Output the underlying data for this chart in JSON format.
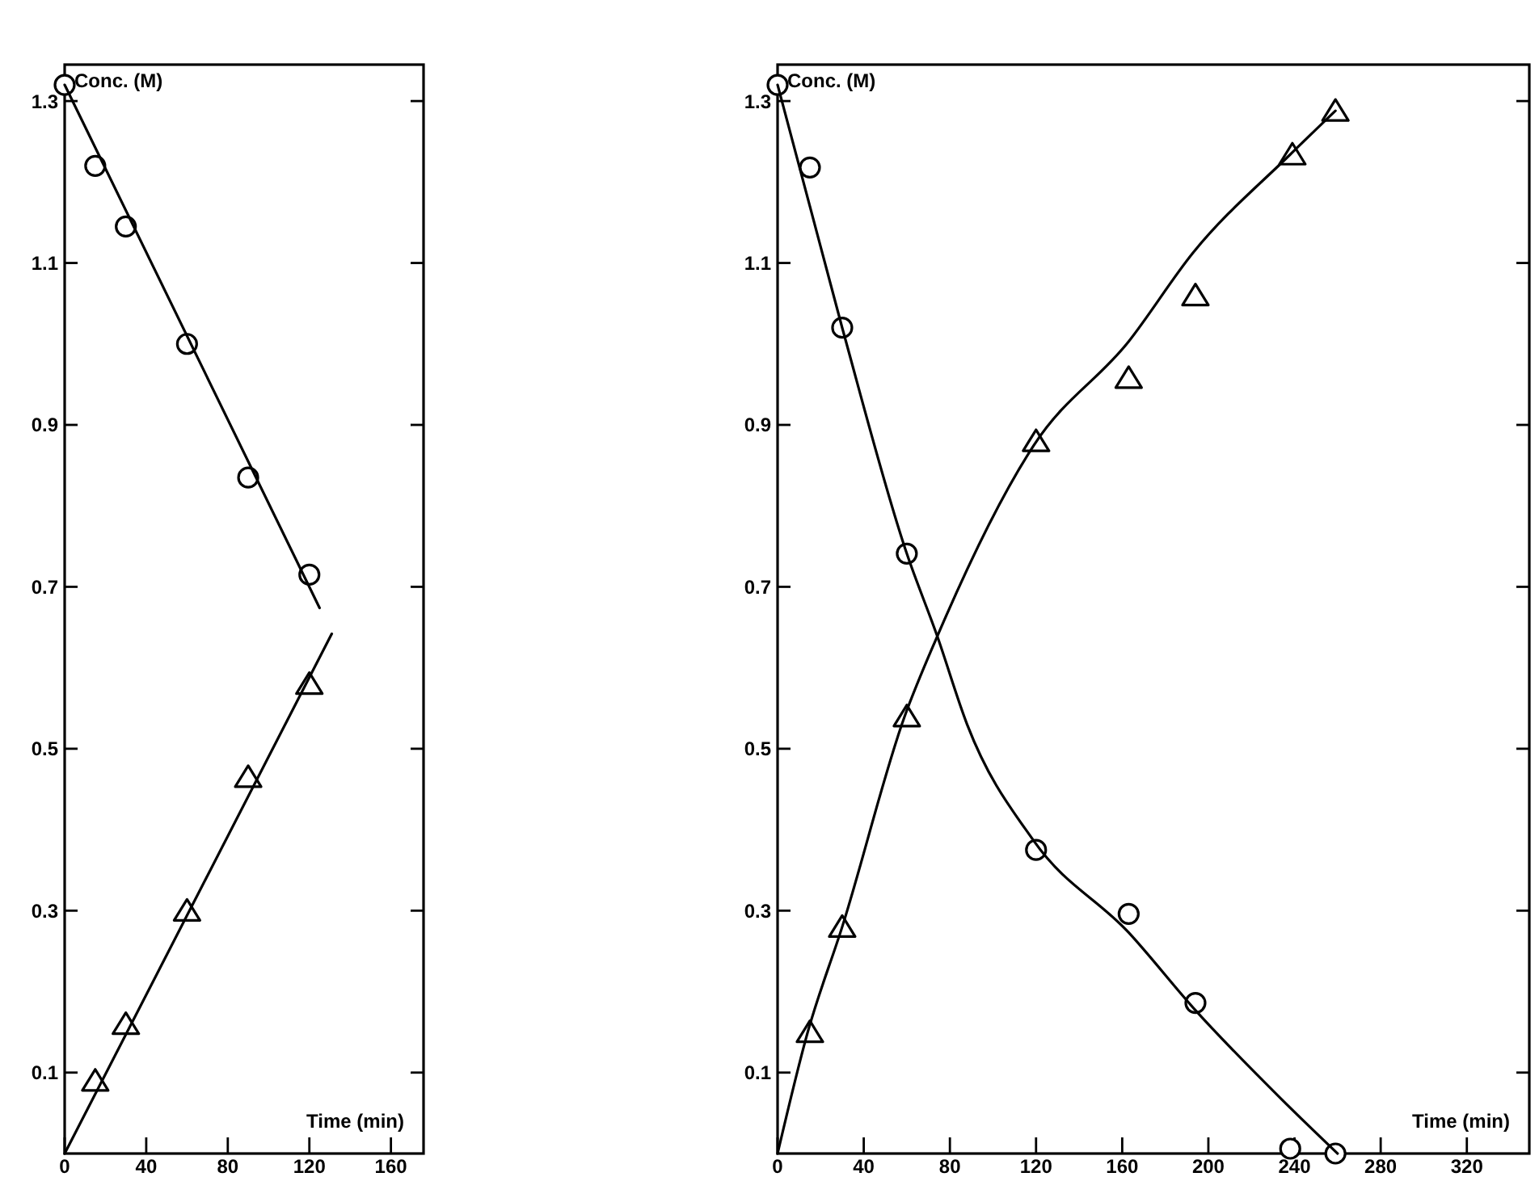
{
  "chart_data": [
    {
      "type": "scatter",
      "xlabel": "Time (min)",
      "ylabel": "Conc. (M)",
      "xlim": [
        0,
        176
      ],
      "ylim": [
        0,
        1.345
      ],
      "xticks": [
        0,
        40,
        80,
        120,
        160
      ],
      "yticks": [
        0.1,
        0.3,
        0.5,
        0.7,
        0.9,
        1.1,
        1.3
      ],
      "series": [
        {
          "marker": "circle",
          "color": "#000000",
          "x": [
            0,
            15,
            30,
            60,
            90,
            120
          ],
          "values": [
            1.32,
            1.22,
            1.145,
            1.0,
            0.835,
            0.715
          ]
        },
        {
          "marker": "triangle",
          "color": "#000000",
          "x": [
            15,
            30,
            60,
            90,
            120
          ],
          "values": [
            0.09,
            0.16,
            0.3,
            0.465,
            0.58
          ]
        },
        {
          "type": "line",
          "marker": "none",
          "line_style": "solid",
          "color": "#000000",
          "x": [
            0,
            125
          ],
          "values": [
            1.32,
            0.674
          ]
        },
        {
          "type": "line",
          "marker": "none",
          "line_style": "solid",
          "color": "#000000",
          "x": [
            0,
            131
          ],
          "values": [
            0,
            0.642
          ]
        }
      ]
    },
    {
      "type": "scatter",
      "xlabel": "Time (min)",
      "ylabel": "Conc. (M)",
      "xlim": [
        0,
        349
      ],
      "ylim": [
        0,
        1.345
      ],
      "xticks": [
        0,
        40,
        80,
        120,
        160,
        200,
        240,
        280,
        320
      ],
      "yticks": [
        0.1,
        0.3,
        0.5,
        0.7,
        0.9,
        1.1,
        1.3
      ],
      "series": [
        {
          "marker": "circle",
          "color": "#000000",
          "x": [
            0,
            15,
            30,
            60,
            120,
            163,
            194,
            238,
            259
          ],
          "values": [
            1.32,
            1.218,
            1.02,
            0.741,
            0.375,
            0.296,
            0.186,
            0.006,
            0.0
          ]
        },
        {
          "marker": "triangle",
          "color": "#000000",
          "x": [
            15,
            30,
            60,
            120,
            163,
            194,
            239,
            259
          ],
          "values": [
            0.15,
            0.28,
            0.54,
            0.88,
            0.958,
            1.06,
            1.234,
            1.288
          ]
        },
        {
          "type": "line",
          "marker": "none",
          "line_style": "solid",
          "color": "#000000",
          "x": [
            0,
            30,
            60,
            74,
            88,
            119,
            163,
            194,
            234,
            260
          ],
          "values": [
            1.32,
            1.02,
            0.741,
            0.64,
            0.53,
            0.386,
            0.273,
            0.177,
            0.067,
            0
          ]
        },
        {
          "type": "line",
          "marker": "none",
          "line_style": "solid",
          "color": "#000000",
          "x": [
            0,
            14,
            30,
            59,
            74,
            119,
            163,
            193,
            238,
            259
          ],
          "values": [
            0,
            0.15,
            0.28,
            0.54,
            0.638,
            0.875,
            1.003,
            1.113,
            1.234,
            1.288
          ]
        }
      ]
    }
  ]
}
